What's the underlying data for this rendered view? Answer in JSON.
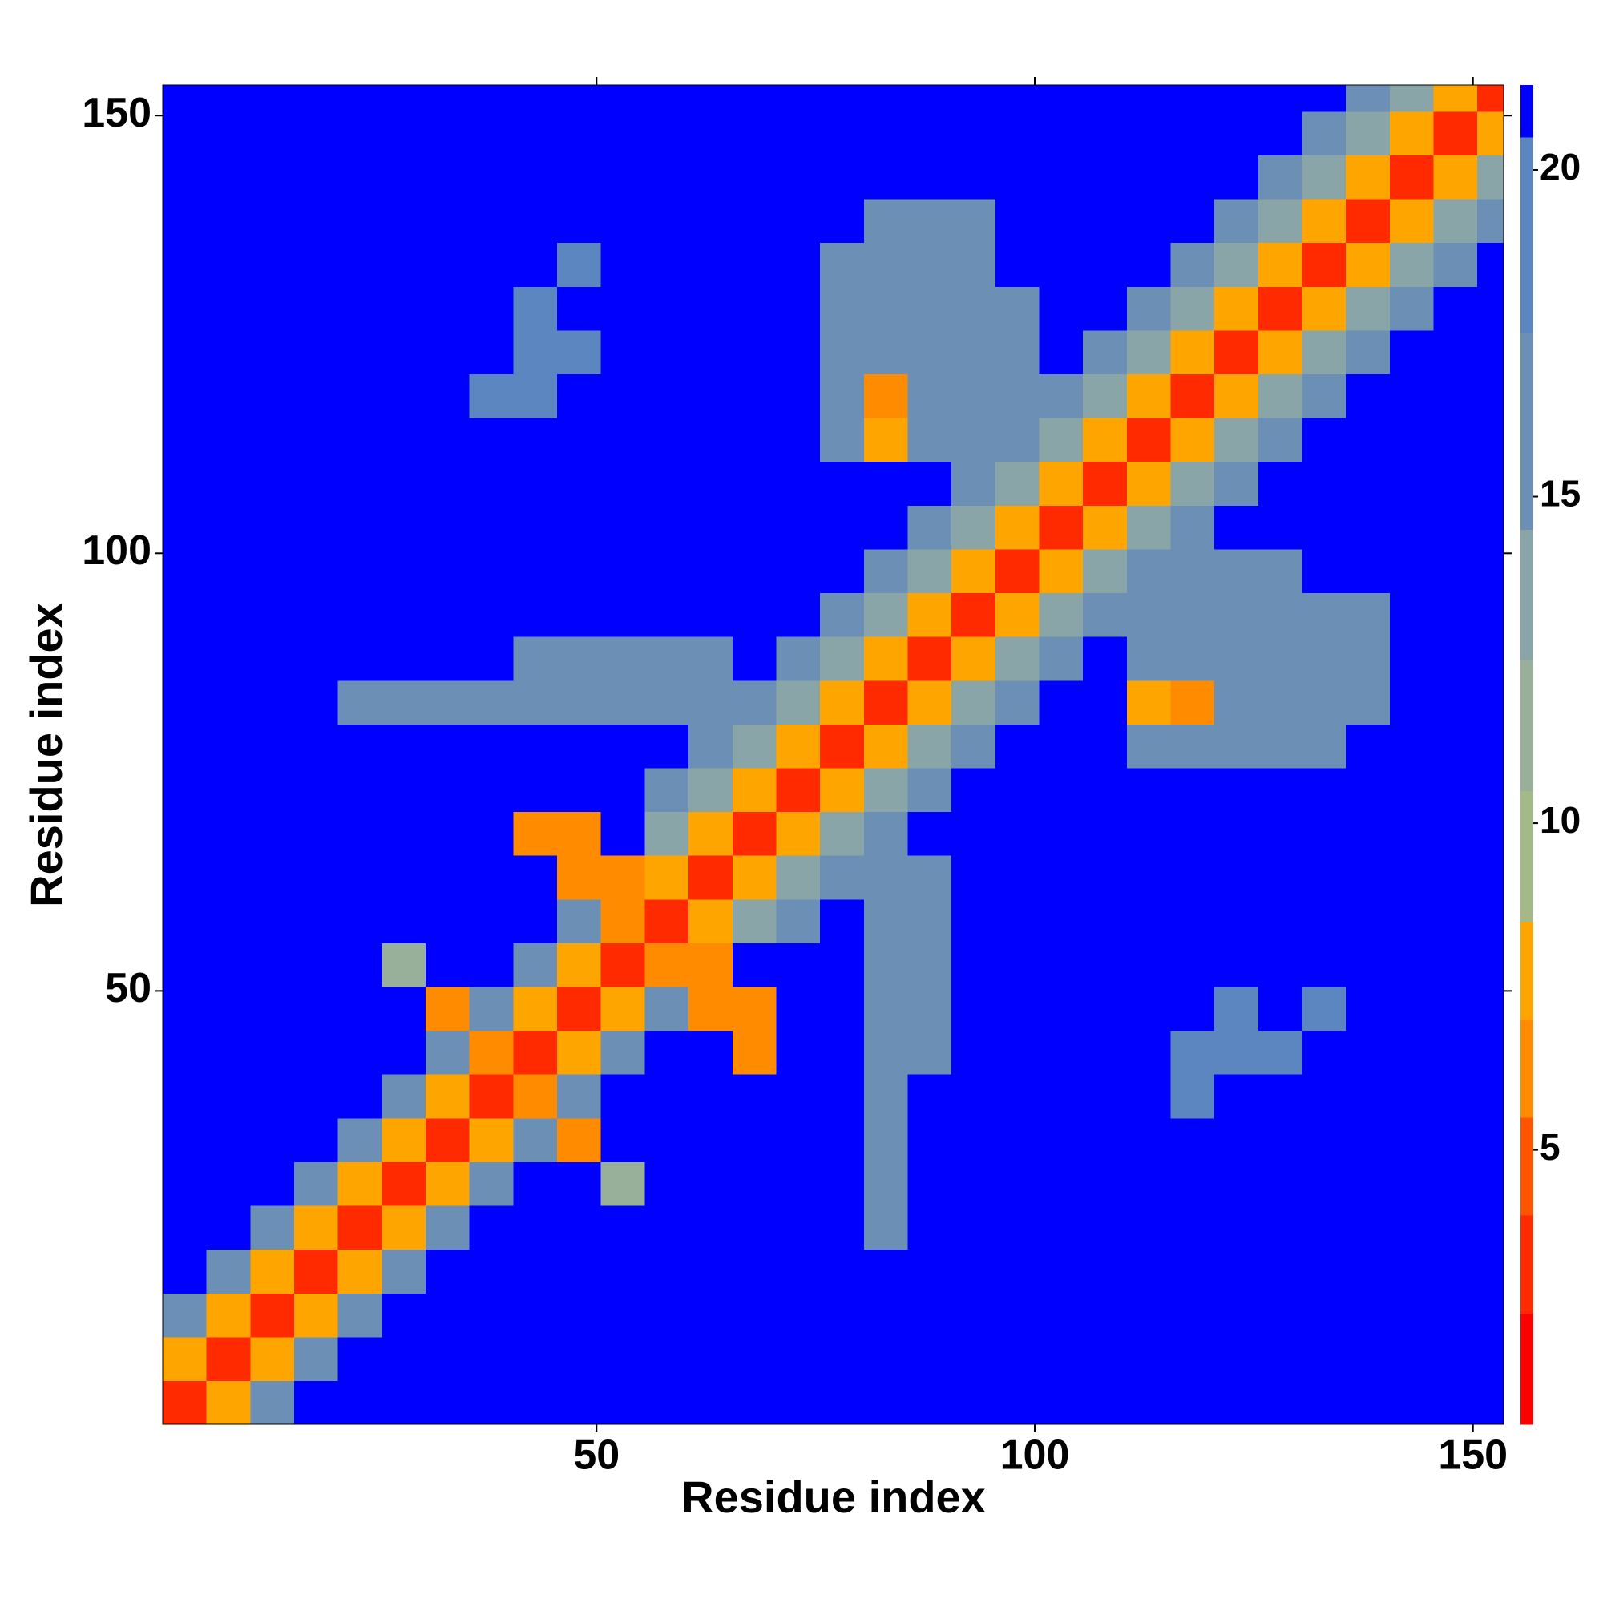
{
  "chart_data": {
    "type": "heatmap",
    "xlabel": "Residue index",
    "ylabel": "Residue index",
    "bins": [
      0.5,
      5.5,
      10.5,
      15.5,
      20.5,
      25.5,
      30.5,
      35.5,
      40.5,
      45.5,
      50.5,
      55.5,
      60.5,
      65.5,
      70.5,
      75.5,
      80.5,
      85.5,
      90.5,
      95.5,
      100.5,
      105.5,
      110.5,
      115.5,
      120.5,
      125.5,
      130.5,
      135.5,
      140.5,
      145.5,
      150.5,
      153.5
    ],
    "xlim": [
      0.5,
      153.5
    ],
    "ylim": [
      0.5,
      153.5
    ],
    "xticks": [
      50,
      100,
      150
    ],
    "yticks": [
      50,
      100,
      150
    ],
    "zlim": [
      0.8,
      21.3
    ],
    "colorbar_ticks": [
      5,
      10,
      15,
      20
    ],
    "levels": [
      2.5,
      4,
      5.5,
      7,
      8.5,
      10.5,
      12.5,
      14.5,
      17.5,
      20.5,
      21.3
    ],
    "colors": [
      "#ff0000",
      "#ff2a00",
      "#ff5500",
      "#ff8c00",
      "#ffa500",
      "#a3b98a",
      "#98b09a",
      "#8aa5a8",
      "#6b8fb5",
      "#5b86c0",
      "#0000ff"
    ],
    "z": [
      [
        3,
        8,
        16,
        21,
        21,
        21,
        21,
        21,
        21,
        21,
        21,
        21,
        21,
        21,
        21,
        21,
        21,
        21,
        21,
        21,
        21,
        21,
        21,
        21,
        21,
        21,
        21,
        21,
        21,
        21,
        21
      ],
      [
        8,
        3,
        8,
        16,
        21,
        21,
        21,
        21,
        21,
        21,
        21,
        21,
        21,
        21,
        21,
        21,
        21,
        21,
        21,
        21,
        21,
        21,
        21,
        21,
        21,
        21,
        21,
        21,
        21,
        21,
        21
      ],
      [
        16,
        8,
        3,
        8,
        16,
        21,
        21,
        21,
        21,
        21,
        21,
        21,
        21,
        21,
        21,
        21,
        21,
        21,
        21,
        21,
        21,
        21,
        21,
        21,
        21,
        21,
        21,
        21,
        21,
        21,
        21
      ],
      [
        21,
        16,
        8,
        3,
        8,
        16,
        21,
        21,
        21,
        21,
        21,
        21,
        21,
        21,
        21,
        21,
        21,
        21,
        21,
        21,
        21,
        21,
        21,
        21,
        21,
        21,
        21,
        21,
        21,
        21,
        21
      ],
      [
        21,
        21,
        16,
        8,
        3,
        8,
        16,
        21,
        21,
        21,
        21,
        21,
        21,
        21,
        21,
        21,
        17,
        21,
        21,
        21,
        21,
        21,
        21,
        21,
        21,
        21,
        21,
        21,
        21,
        21,
        21
      ],
      [
        21,
        21,
        21,
        16,
        8,
        3,
        8,
        16,
        21,
        21,
        12,
        21,
        21,
        21,
        21,
        21,
        17,
        21,
        21,
        21,
        21,
        21,
        21,
        21,
        21,
        21,
        21,
        21,
        21,
        21,
        21
      ],
      [
        21,
        21,
        21,
        21,
        16,
        8,
        3,
        8,
        16,
        7,
        21,
        21,
        21,
        21,
        21,
        21,
        17,
        21,
        21,
        21,
        21,
        21,
        21,
        21,
        21,
        21,
        21,
        21,
        21,
        21,
        21
      ],
      [
        21,
        21,
        21,
        21,
        21,
        16,
        8,
        3,
        7,
        16,
        21,
        21,
        21,
        21,
        21,
        21,
        16,
        21,
        21,
        21,
        21,
        21,
        21,
        18,
        21,
        21,
        21,
        21,
        21,
        21,
        21
      ],
      [
        21,
        21,
        21,
        21,
        21,
        21,
        16,
        7,
        3,
        8,
        16,
        21,
        21,
        7,
        21,
        21,
        16,
        17,
        21,
        21,
        21,
        21,
        21,
        18,
        18,
        18,
        21,
        21,
        21,
        21,
        21
      ],
      [
        21,
        21,
        21,
        21,
        21,
        21,
        7,
        16,
        8,
        3,
        8,
        16,
        6,
        7,
        21,
        21,
        17,
        17,
        21,
        21,
        21,
        21,
        21,
        21,
        19,
        21,
        19,
        21,
        21,
        21,
        21
      ],
      [
        21,
        21,
        21,
        21,
        21,
        12,
        21,
        21,
        16,
        8,
        3,
        6,
        6,
        21,
        21,
        21,
        15,
        17,
        21,
        21,
        21,
        21,
        21,
        21,
        21,
        21,
        21,
        21,
        21,
        21,
        21
      ],
      [
        21,
        21,
        21,
        21,
        21,
        21,
        21,
        21,
        21,
        16,
        6,
        3,
        8,
        13,
        17,
        21,
        16,
        17,
        21,
        21,
        21,
        21,
        21,
        21,
        21,
        21,
        21,
        21,
        21,
        21,
        21
      ],
      [
        21,
        21,
        21,
        21,
        21,
        21,
        21,
        21,
        21,
        6,
        6,
        8,
        3,
        8,
        13,
        17,
        16,
        17,
        21,
        21,
        21,
        21,
        21,
        21,
        21,
        21,
        21,
        21,
        21,
        21,
        21
      ],
      [
        21,
        21,
        21,
        21,
        21,
        21,
        21,
        21,
        7,
        7,
        21,
        13,
        8,
        3,
        8,
        13,
        15,
        21,
        21,
        21,
        21,
        21,
        21,
        21,
        21,
        21,
        21,
        21,
        21,
        21,
        21
      ],
      [
        21,
        21,
        21,
        21,
        21,
        21,
        21,
        21,
        21,
        21,
        21,
        17,
        13,
        8,
        3,
        8,
        13,
        17,
        21,
        21,
        21,
        21,
        21,
        21,
        21,
        21,
        21,
        21,
        21,
        21,
        21
      ],
      [
        21,
        21,
        21,
        21,
        21,
        21,
        21,
        21,
        21,
        21,
        21,
        21,
        17,
        13,
        8,
        3,
        8,
        13,
        17,
        21,
        21,
        21,
        16,
        16,
        16,
        16,
        16,
        21,
        21,
        21,
        21
      ],
      [
        21,
        21,
        21,
        21,
        17,
        17,
        17,
        16,
        16,
        17,
        15,
        16,
        16,
        15,
        13,
        8,
        3,
        8,
        13,
        17,
        21,
        21,
        8,
        7,
        16,
        16,
        16,
        16,
        21,
        21,
        21
      ],
      [
        21,
        21,
        21,
        21,
        21,
        21,
        21,
        21,
        17,
        17,
        17,
        17,
        17,
        21,
        17,
        13,
        8,
        3,
        8,
        13,
        17,
        21,
        16,
        16,
        16,
        16,
        16,
        16,
        21,
        21,
        21
      ],
      [
        21,
        21,
        21,
        21,
        21,
        21,
        21,
        21,
        21,
        21,
        21,
        21,
        21,
        21,
        21,
        17,
        13,
        8,
        3,
        8,
        13,
        17,
        16,
        16,
        16,
        16,
        16,
        16,
        21,
        21,
        21
      ],
      [
        21,
        21,
        21,
        21,
        21,
        21,
        21,
        21,
        21,
        21,
        21,
        21,
        21,
        21,
        21,
        21,
        17,
        13,
        8,
        3,
        8,
        13,
        16,
        16,
        16,
        16,
        21,
        21,
        21,
        21,
        21
      ],
      [
        21,
        21,
        21,
        21,
        21,
        21,
        21,
        21,
        21,
        21,
        21,
        21,
        21,
        21,
        21,
        21,
        21,
        17,
        13,
        8,
        3,
        8,
        13,
        17,
        21,
        21,
        21,
        21,
        21,
        21,
        21
      ],
      [
        21,
        21,
        21,
        21,
        21,
        21,
        21,
        21,
        21,
        21,
        21,
        21,
        21,
        21,
        21,
        21,
        21,
        21,
        17,
        13,
        8,
        3,
        8,
        13,
        17,
        21,
        21,
        21,
        21,
        21,
        21
      ],
      [
        21,
        21,
        21,
        21,
        21,
        21,
        21,
        21,
        21,
        21,
        21,
        21,
        21,
        21,
        21,
        16,
        8,
        16,
        16,
        16,
        13,
        8,
        3,
        8,
        13,
        17,
        21,
        21,
        21,
        21,
        21
      ],
      [
        21,
        21,
        21,
        21,
        21,
        21,
        21,
        18,
        18,
        21,
        21,
        21,
        21,
        21,
        21,
        16,
        7,
        16,
        16,
        16,
        17,
        13,
        8,
        3,
        8,
        13,
        17,
        21,
        21,
        21,
        21
      ],
      [
        21,
        21,
        21,
        21,
        21,
        21,
        21,
        21,
        18,
        19,
        21,
        21,
        21,
        21,
        21,
        16,
        16,
        16,
        16,
        16,
        21,
        17,
        13,
        8,
        3,
        8,
        13,
        17,
        21,
        21,
        21
      ],
      [
        21,
        21,
        21,
        21,
        21,
        21,
        21,
        21,
        18,
        21,
        21,
        21,
        21,
        21,
        21,
        16,
        16,
        16,
        16,
        16,
        21,
        21,
        17,
        13,
        8,
        3,
        8,
        13,
        17,
        21,
        21
      ],
      [
        21,
        21,
        21,
        21,
        21,
        21,
        21,
        21,
        21,
        19,
        21,
        21,
        21,
        21,
        21,
        16,
        16,
        16,
        16,
        21,
        21,
        21,
        21,
        17,
        13,
        8,
        3,
        8,
        13,
        17,
        21
      ],
      [
        21,
        21,
        21,
        21,
        21,
        21,
        21,
        21,
        21,
        21,
        21,
        21,
        21,
        21,
        21,
        21,
        16,
        16,
        16,
        21,
        21,
        21,
        21,
        21,
        17,
        13,
        8,
        3,
        8,
        13,
        17
      ],
      [
        21,
        21,
        21,
        21,
        21,
        21,
        21,
        21,
        21,
        21,
        21,
        21,
        21,
        21,
        21,
        21,
        21,
        21,
        21,
        21,
        21,
        21,
        21,
        21,
        21,
        17,
        13,
        8,
        3,
        8,
        13
      ],
      [
        21,
        21,
        21,
        21,
        21,
        21,
        21,
        21,
        21,
        21,
        21,
        21,
        21,
        21,
        21,
        21,
        21,
        21,
        21,
        21,
        21,
        21,
        21,
        21,
        21,
        21,
        17,
        13,
        8,
        3,
        8
      ],
      [
        21,
        21,
        21,
        21,
        21,
        21,
        21,
        21,
        21,
        21,
        21,
        21,
        21,
        21,
        21,
        21,
        21,
        21,
        21,
        21,
        21,
        21,
        21,
        21,
        21,
        21,
        21,
        17,
        13,
        8,
        3
      ]
    ]
  }
}
